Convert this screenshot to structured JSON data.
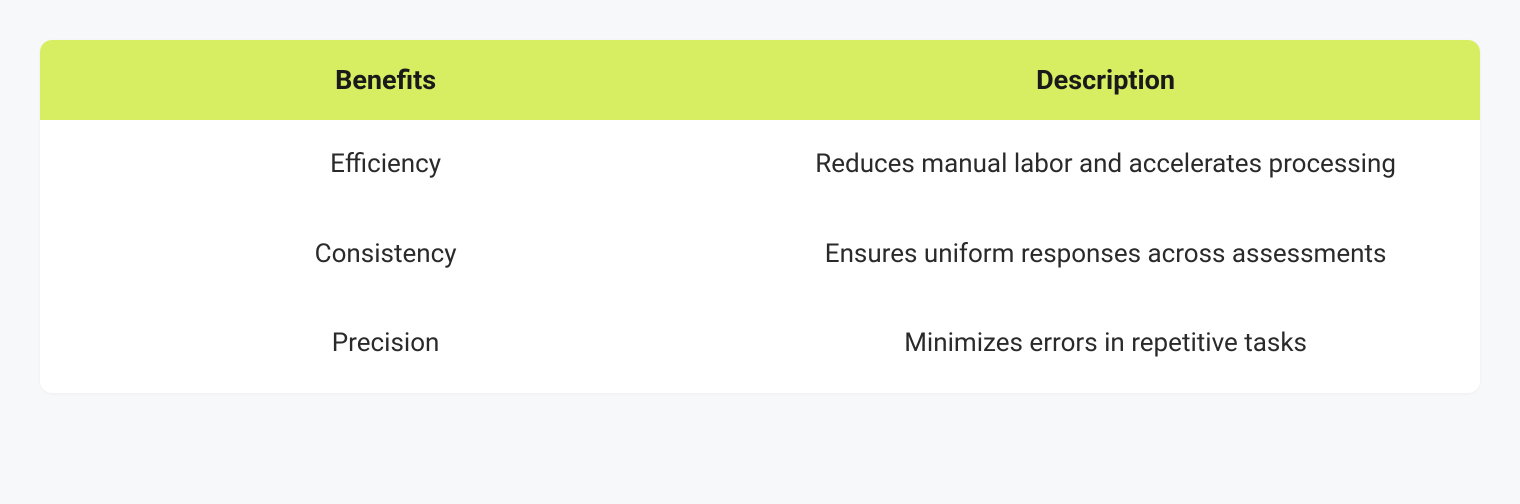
{
  "table": {
    "type": "table",
    "background_color": "#ffffff",
    "page_background_color": "#f7f8fa",
    "border_radius": 12,
    "header": {
      "background_color": "#d7ed62",
      "text_color": "#1a1a1a",
      "font_size": 27,
      "font_weight": 700,
      "columns": [
        "Benefits",
        "Description"
      ]
    },
    "body": {
      "text_color": "#2a2a2a",
      "font_size": 26,
      "font_weight": 400,
      "rows": [
        [
          "Efficiency",
          "Reduces manual labor and accelerates processing"
        ],
        [
          "Consistency",
          "Ensures uniform responses across assessments"
        ],
        [
          "Precision",
          "Minimizes errors in repetitive tasks"
        ]
      ]
    },
    "column_widths_pct": [
      48,
      52
    ]
  }
}
